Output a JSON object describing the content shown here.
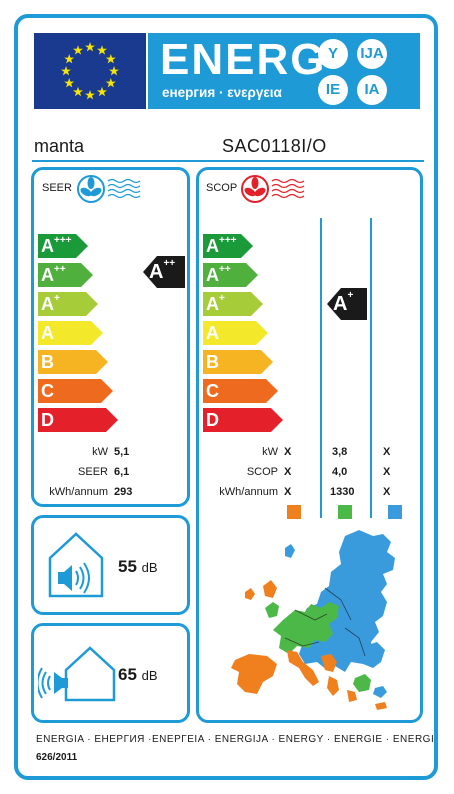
{
  "header": {
    "title": "ENERG",
    "subtitle": "енергия · ενεργεια",
    "languages": [
      "Y",
      "IJA",
      "IE",
      "IA"
    ],
    "flag_color": "#1a3a8f",
    "accent_color": "#1e9ad6"
  },
  "supplier": "manta",
  "model": "SAC0118I/O",
  "seer_panel": {
    "label": "SEER",
    "classes": [
      {
        "letter": "A",
        "plus": "+++",
        "color": "#1b9a3a"
      },
      {
        "letter": "A",
        "plus": "++",
        "color": "#4fb03d"
      },
      {
        "letter": "A",
        "plus": "+",
        "color": "#a6cc3a"
      },
      {
        "letter": "A",
        "plus": "",
        "color": "#f4e82a"
      },
      {
        "letter": "B",
        "plus": "",
        "color": "#f7b422"
      },
      {
        "letter": "C",
        "plus": "",
        "color": "#ee6a1f"
      },
      {
        "letter": "D",
        "plus": "",
        "color": "#e4202a"
      }
    ],
    "rating": {
      "letter": "A",
      "plus": "++"
    },
    "rows": [
      {
        "label": "kW",
        "value": "5,1"
      },
      {
        "label": "SEER",
        "value": "6,1"
      },
      {
        "label": "kWh/annum",
        "value": "293"
      }
    ]
  },
  "scop_panel": {
    "label": "SCOP",
    "rating": {
      "letter": "A",
      "plus": "+"
    },
    "rows": [
      {
        "label": "kW",
        "values": [
          "X",
          "3,8",
          "X"
        ]
      },
      {
        "label": "SCOP",
        "values": [
          "X",
          "4,0",
          "X"
        ]
      },
      {
        "label": "kWh/annum",
        "values": [
          "X",
          "1330",
          "X"
        ]
      }
    ],
    "zone_colors": [
      "#f07f1e",
      "#4cb848",
      "#3a9bdc"
    ]
  },
  "noise_indoor": {
    "value": "55",
    "unit": "dB"
  },
  "noise_outdoor": {
    "value": "65",
    "unit": "dB"
  },
  "footer": {
    "languages": "ENERGIA · ЕНЕРГИЯ ·ΕΝΕΡΓΕΙΑ · ENERGIJA · ENERGY · ENERGIE · ENERGI",
    "regulation": "626/2011"
  }
}
